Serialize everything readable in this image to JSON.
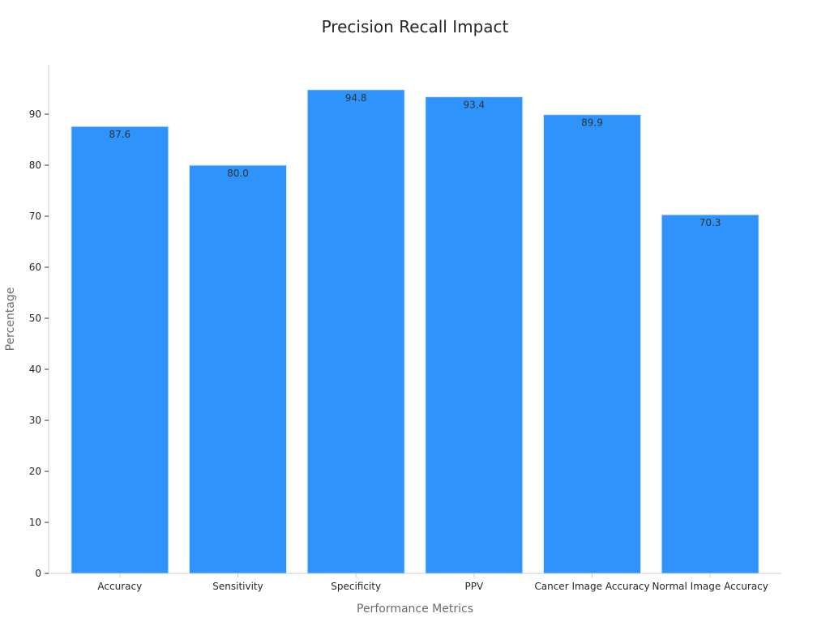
{
  "chart_data": {
    "type": "bar",
    "title": "Precision Recall Impact",
    "xlabel": "Performance Metrics",
    "ylabel": "Percentage",
    "categories": [
      "Accuracy",
      "Sensitivity",
      "Specificity",
      "PPV",
      "Cancer Image Accuracy",
      "Normal Image Accuracy"
    ],
    "values": [
      87.6,
      80.0,
      94.8,
      93.4,
      89.9,
      70.3
    ],
    "value_labels": [
      "87.6",
      "80.0",
      "94.8",
      "93.4",
      "89.9",
      "70.3"
    ],
    "ylim": [
      0,
      100
    ],
    "yticks": [
      0,
      10,
      20,
      30,
      40,
      50,
      60,
      70,
      80,
      90
    ],
    "grid": false,
    "legend": "none",
    "colors": {
      "bar": "#2e93fa",
      "axis": "#cccccc"
    }
  }
}
